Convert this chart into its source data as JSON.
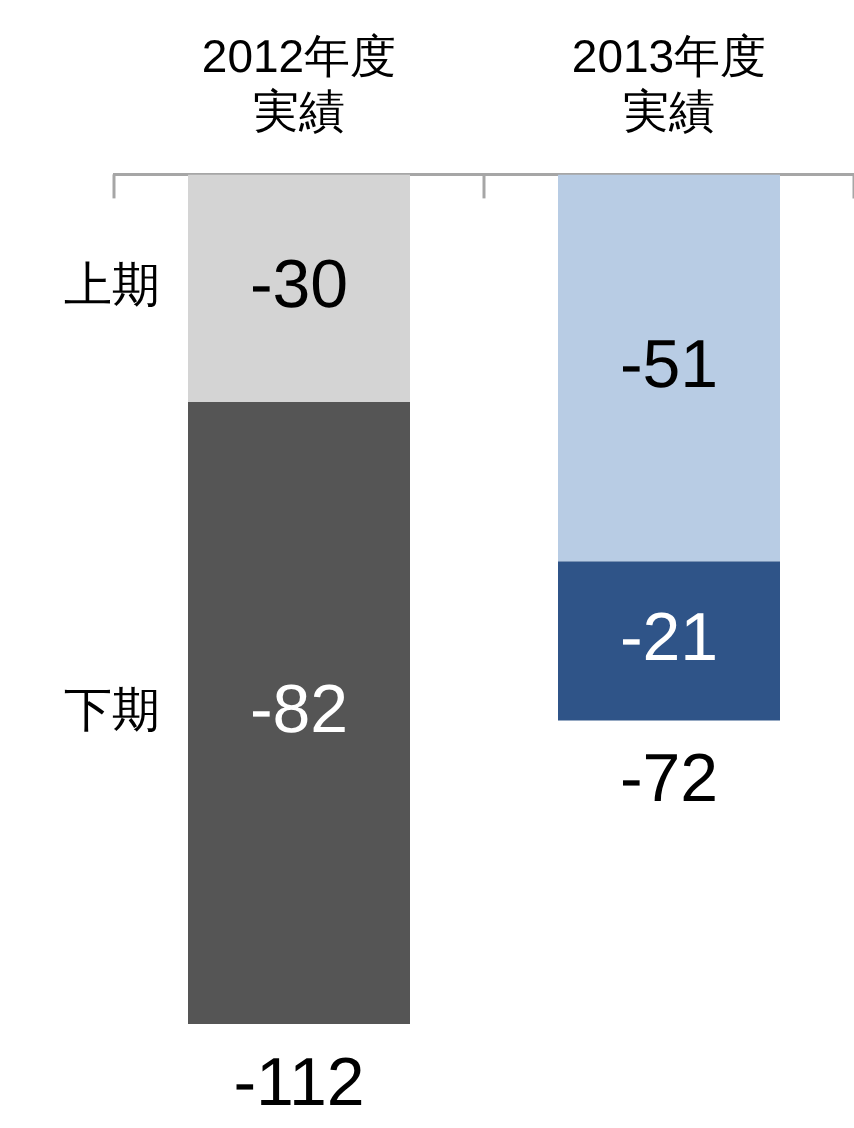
{
  "chart_data": {
    "type": "bar",
    "stacked": true,
    "categories": [
      "2012年度実績",
      "2013年度実績"
    ],
    "series": [
      {
        "name": "上期",
        "colors": [
          "#d4d4d4",
          "#b8cce4"
        ],
        "values": [
          -30,
          -51
        ]
      },
      {
        "name": "下期",
        "colors": [
          "#555555",
          "#2f5488"
        ],
        "values": [
          -82,
          -21
        ]
      }
    ],
    "data_labels": true,
    "totals": [
      "-112",
      "-72"
    ],
    "legend": false
  }
}
